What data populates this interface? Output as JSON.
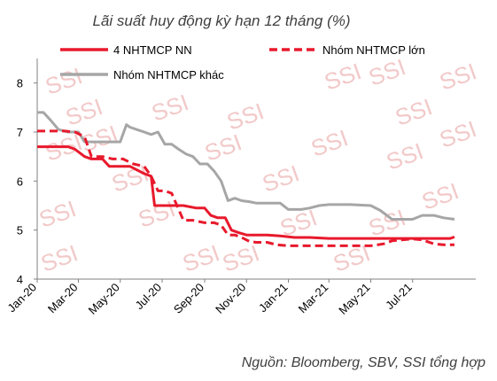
{
  "chart_data": {
    "type": "line",
    "title": "Lãi suất huy động kỳ hạn 12 tháng (%)",
    "source": "Nguồn:  Bloomberg, SBV, SSI tổng hợp",
    "watermark": "SSI",
    "xlabel": "",
    "ylabel": "",
    "ylim": [
      4,
      8.5
    ],
    "yticks": [
      4,
      5,
      6,
      7,
      8
    ],
    "x_range": [
      "2020-01",
      "2021-09"
    ],
    "x_ticks": [
      "Jan-20",
      "Mar-20",
      "May-20",
      "Jul-20",
      "Sep-20",
      "Nov-20",
      "Jan-21",
      "Mar-21",
      "May-21",
      "Jul-21"
    ],
    "grid": false,
    "legend_position": "top",
    "series": [
      {
        "name": "4 NHTMCP NN",
        "color": "#e8192c",
        "style": "solid",
        "x": [
          "2020-01-01",
          "2020-02-05",
          "2020-02-15",
          "2020-02-25",
          "2020-03-10",
          "2020-03-20",
          "2020-04-05",
          "2020-04-15",
          "2020-05-05",
          "2020-05-15",
          "2020-06-05",
          "2020-06-15",
          "2020-06-20",
          "2020-07-01",
          "2020-07-10",
          "2020-08-01",
          "2020-08-20",
          "2020-09-01",
          "2020-09-10",
          "2020-09-20",
          "2020-10-01",
          "2020-10-10",
          "2020-10-20",
          "2020-11-01",
          "2020-11-15",
          "2020-12-01",
          "2020-12-20",
          "2021-01-10",
          "2021-02-01",
          "2021-03-01",
          "2021-04-01",
          "2021-05-01",
          "2021-06-01",
          "2021-07-01",
          "2021-08-01",
          "2021-08-25",
          "2021-08-31"
        ],
        "values": [
          6.7,
          6.7,
          6.7,
          6.65,
          6.5,
          6.45,
          6.45,
          6.3,
          6.3,
          6.3,
          6.15,
          6.1,
          5.5,
          5.5,
          5.5,
          5.5,
          5.45,
          5.45,
          5.3,
          5.25,
          5.25,
          5.0,
          4.95,
          4.9,
          4.9,
          4.9,
          4.88,
          4.85,
          4.85,
          4.83,
          4.83,
          4.83,
          4.83,
          4.83,
          4.83,
          4.83,
          4.86
        ]
      },
      {
        "name": "Nhóm NHTMCP lớn",
        "color": "#e8192c",
        "style": "dashed",
        "x": [
          "2020-01-01",
          "2020-02-10",
          "2020-02-25",
          "2020-03-10",
          "2020-03-20",
          "2020-04-05",
          "2020-04-20",
          "2020-05-05",
          "2020-05-20",
          "2020-06-05",
          "2020-06-15",
          "2020-06-25",
          "2020-07-05",
          "2020-07-15",
          "2020-08-01",
          "2020-08-15",
          "2020-09-01",
          "2020-09-15",
          "2020-09-25",
          "2020-10-05",
          "2020-10-15",
          "2020-10-25",
          "2020-11-05",
          "2020-11-15",
          "2020-12-01",
          "2020-12-15",
          "2021-01-01",
          "2021-02-01",
          "2021-03-01",
          "2021-04-01",
          "2021-05-01",
          "2021-05-20",
          "2021-06-01",
          "2021-06-15",
          "2021-07-01",
          "2021-07-15",
          "2021-08-01",
          "2021-08-15",
          "2021-08-31"
        ],
        "values": [
          7.02,
          7.02,
          7.0,
          6.9,
          6.5,
          6.5,
          6.45,
          6.45,
          6.35,
          6.3,
          6.1,
          5.8,
          5.8,
          5.75,
          5.2,
          5.2,
          5.15,
          5.15,
          5.1,
          4.9,
          4.9,
          4.85,
          4.77,
          4.75,
          4.75,
          4.7,
          4.68,
          4.68,
          4.68,
          4.68,
          4.68,
          4.72,
          4.78,
          4.8,
          4.82,
          4.8,
          4.72,
          4.7,
          4.7
        ]
      },
      {
        "name": "Nhóm NHTMCP khác",
        "color": "#a6a6a6",
        "style": "solid",
        "x": [
          "2020-01-01",
          "2020-01-10",
          "2020-01-20",
          "2020-02-01",
          "2020-02-15",
          "2020-03-01",
          "2020-03-10",
          "2020-04-01",
          "2020-05-01",
          "2020-05-10",
          "2020-05-15",
          "2020-05-25",
          "2020-06-05",
          "2020-06-15",
          "2020-06-25",
          "2020-07-05",
          "2020-07-15",
          "2020-07-25",
          "2020-08-05",
          "2020-08-15",
          "2020-08-25",
          "2020-09-05",
          "2020-09-15",
          "2020-09-25",
          "2020-10-05",
          "2020-10-15",
          "2020-10-25",
          "2020-11-05",
          "2020-11-15",
          "2020-12-01",
          "2020-12-20",
          "2021-01-01",
          "2021-01-20",
          "2021-02-01",
          "2021-02-15",
          "2021-03-01",
          "2021-04-01",
          "2021-05-01",
          "2021-05-15",
          "2021-06-01",
          "2021-07-01",
          "2021-07-15",
          "2021-08-01",
          "2021-08-15",
          "2021-08-31"
        ],
        "values": [
          7.4,
          7.4,
          7.25,
          7.05,
          7.0,
          7.0,
          6.8,
          6.8,
          6.8,
          7.15,
          7.1,
          7.05,
          7.0,
          6.95,
          7.0,
          6.75,
          6.75,
          6.65,
          6.55,
          6.5,
          6.35,
          6.35,
          6.2,
          6.0,
          5.6,
          5.65,
          5.6,
          5.58,
          5.55,
          5.55,
          5.55,
          5.42,
          5.42,
          5.45,
          5.5,
          5.52,
          5.52,
          5.5,
          5.4,
          5.22,
          5.22,
          5.3,
          5.3,
          5.25,
          5.22
        ]
      }
    ]
  }
}
